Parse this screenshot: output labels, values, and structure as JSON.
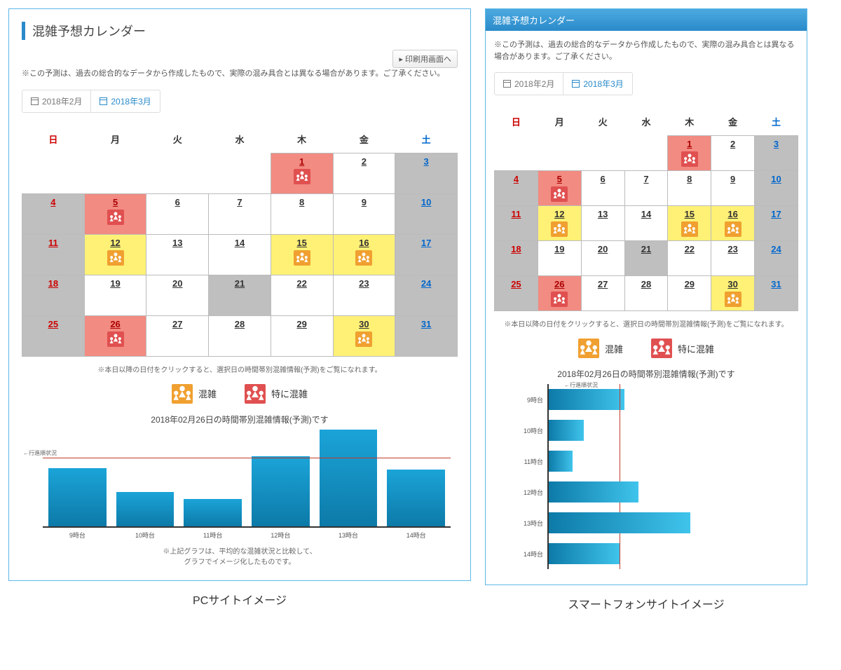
{
  "pc": {
    "title": "混雑予想カレンダー",
    "print_button": "印刷用画面へ",
    "disclaimer": "※この予測は、過去の総合的なデータから作成したもので、実際の混み具合とは異なる場合があります。ご了承ください。",
    "caption": "PCサイトイメージ"
  },
  "sp": {
    "title": "混雑予想カレンダー",
    "disclaimer": "※この予測は、過去の総合的なデータから作成したもので、実際の混み具合とは異なる場合があります。ご了承ください。",
    "caption": "スマートフォンサイトイメージ"
  },
  "month_tabs": [
    {
      "label": "2018年2月",
      "active": false
    },
    {
      "label": "2018年3月",
      "active": true
    }
  ],
  "weekday_headers": [
    "日",
    "月",
    "火",
    "水",
    "木",
    "金",
    "土"
  ],
  "calendar_rows": [
    [
      {
        "day": null
      },
      {
        "day": null
      },
      {
        "day": null
      },
      {
        "day": null
      },
      {
        "day": 1,
        "bg": "red",
        "icon": "r"
      },
      {
        "day": 2,
        "bg": "white"
      },
      {
        "day": 3,
        "bg": "gray",
        "txt": "sat"
      }
    ],
    [
      {
        "day": 4,
        "bg": "gray",
        "txt": "sun"
      },
      {
        "day": 5,
        "bg": "red",
        "icon": "r"
      },
      {
        "day": 6,
        "bg": "white"
      },
      {
        "day": 7,
        "bg": "white"
      },
      {
        "day": 8,
        "bg": "white"
      },
      {
        "day": 9,
        "bg": "white"
      },
      {
        "day": 10,
        "bg": "gray",
        "txt": "sat"
      }
    ],
    [
      {
        "day": 11,
        "bg": "gray",
        "txt": "sun"
      },
      {
        "day": 12,
        "bg": "yellow",
        "icon": "y"
      },
      {
        "day": 13,
        "bg": "white"
      },
      {
        "day": 14,
        "bg": "white"
      },
      {
        "day": 15,
        "bg": "yellow",
        "icon": "y"
      },
      {
        "day": 16,
        "bg": "yellow",
        "icon": "y"
      },
      {
        "day": 17,
        "bg": "gray",
        "txt": "sat"
      }
    ],
    [
      {
        "day": 18,
        "bg": "gray",
        "txt": "sun"
      },
      {
        "day": 19,
        "bg": "white"
      },
      {
        "day": 20,
        "bg": "white"
      },
      {
        "day": 21,
        "bg": "gray"
      },
      {
        "day": 22,
        "bg": "white"
      },
      {
        "day": 23,
        "bg": "white"
      },
      {
        "day": 24,
        "bg": "gray",
        "txt": "sat"
      }
    ],
    [
      {
        "day": 25,
        "bg": "gray",
        "txt": "sun"
      },
      {
        "day": 26,
        "bg": "red",
        "icon": "r"
      },
      {
        "day": 27,
        "bg": "white"
      },
      {
        "day": 28,
        "bg": "white"
      },
      {
        "day": 29,
        "bg": "white"
      },
      {
        "day": 30,
        "bg": "yellow",
        "icon": "y"
      },
      {
        "day": 31,
        "bg": "gray",
        "txt": "sat"
      }
    ]
  ],
  "click_note": "※本日以降の日付をクリックすると、選択日の時間帯別混雑情報(予測)をご覧になれます。",
  "legend": {
    "crowded": "混雑",
    "very_crowded": "特に混雑"
  },
  "chart_heading": "2018年02月26日の時間帯別混雑情報(予測)です",
  "chart_ylabel": "←行進順状況",
  "vchart": {
    "avg_line_pct": 70,
    "bars": [
      {
        "label": "9時台",
        "value": 60
      },
      {
        "label": "10時台",
        "value": 35
      },
      {
        "label": "11時台",
        "value": 28
      },
      {
        "label": "12時台",
        "value": 72
      },
      {
        "label": "13時台",
        "value": 100
      },
      {
        "label": "14時台",
        "value": 58
      }
    ],
    "footnote_l1": "※上記グラフは、平均的な混雑状況と比較して、",
    "footnote_l2": "グラフでイメージ化したものです。"
  },
  "hchart": {
    "axis_label": "←行進順状況",
    "avg_line_pct": 30,
    "bars": [
      {
        "label": "9時台",
        "value": 32
      },
      {
        "label": "10時台",
        "value": 15
      },
      {
        "label": "11時台",
        "value": 10
      },
      {
        "label": "12時台",
        "value": 38
      },
      {
        "label": "13時台",
        "value": 60
      },
      {
        "label": "14時台",
        "value": 30
      }
    ]
  },
  "colors": {
    "border": "#5eb8e8",
    "header_grad_top": "#4da9e0",
    "header_grad_bottom": "#2a8bca",
    "cell_gray": "#bfbfbf",
    "cell_red": "#f28b82",
    "cell_yellow": "#fff176",
    "icon_yellow": "#f0a030",
    "icon_red": "#e05050",
    "bar_grad_a": "#1ba4d8",
    "bar_grad_b": "#0d7aa8",
    "avg_line": "#c0392b",
    "sunday_text": "#c00",
    "saturday_text": "#06c"
  }
}
